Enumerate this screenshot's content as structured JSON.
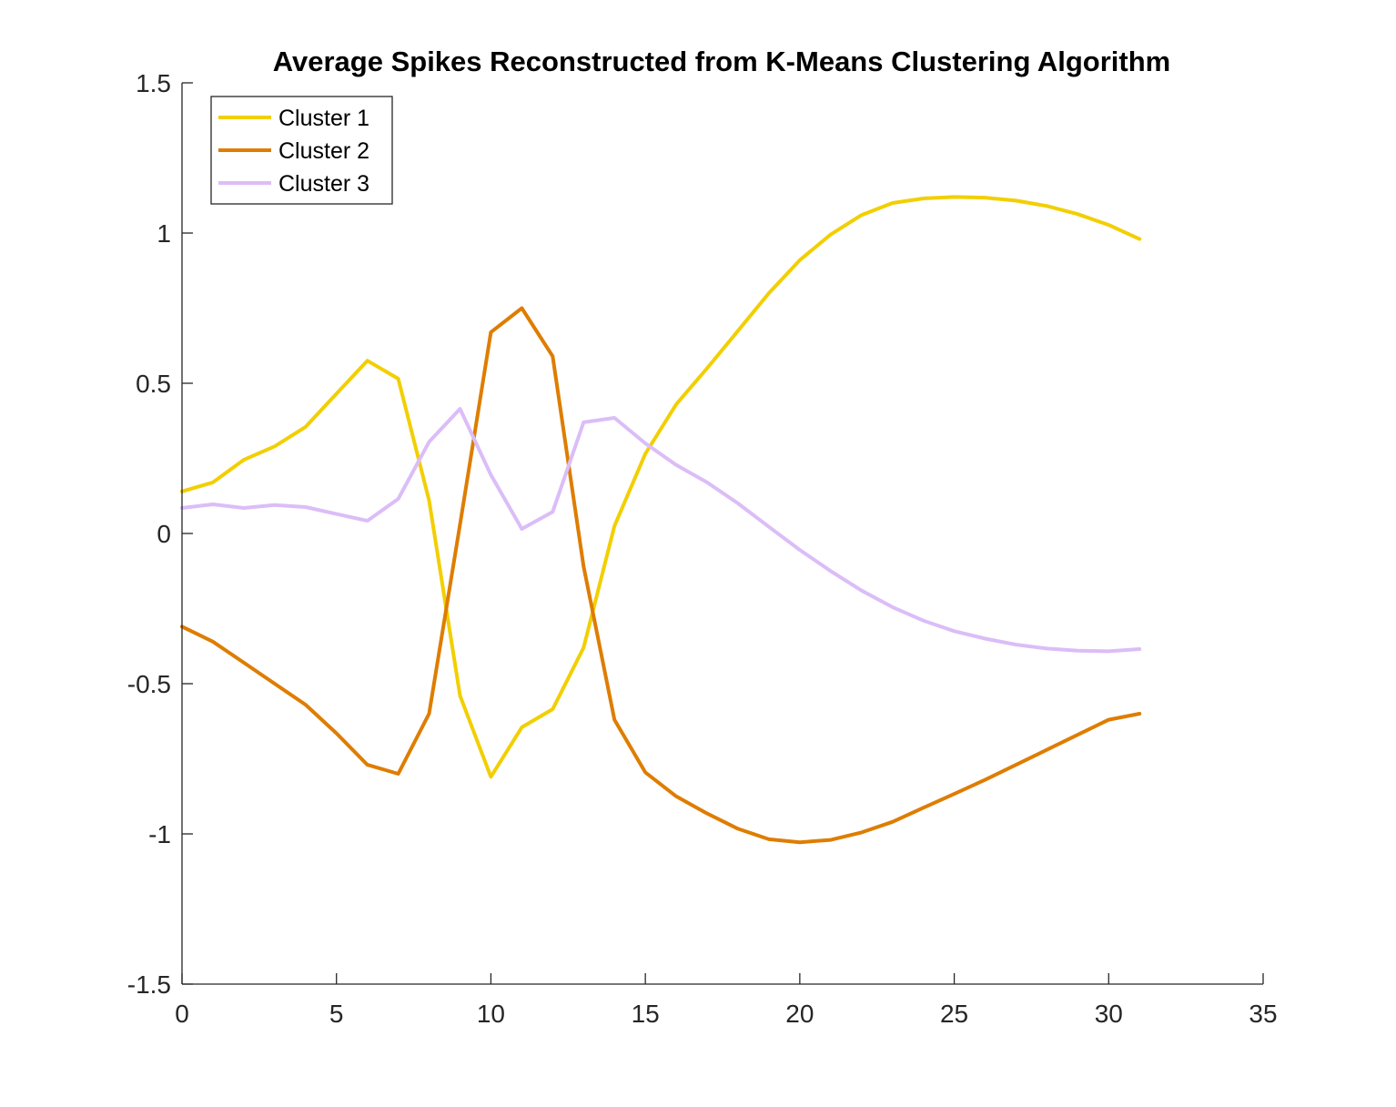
{
  "chart_data": {
    "type": "line",
    "title": "Average Spikes Reconstructed from K-Means Clustering Algorithm",
    "xlabel": "",
    "ylabel": "",
    "xlim": [
      0,
      35
    ],
    "ylim": [
      -1.5,
      1.5
    ],
    "xticks": [
      0,
      5,
      10,
      15,
      20,
      25,
      30,
      35
    ],
    "yticks": [
      -1.5,
      -1,
      -0.5,
      0,
      0.5,
      1,
      1.5
    ],
    "xtick_labels": [
      "0",
      "5",
      "10",
      "15",
      "20",
      "25",
      "30",
      "35"
    ],
    "ytick_labels": [
      "-1.5",
      "-1",
      "-0.5",
      "0",
      "0.5",
      "1",
      "1.5"
    ],
    "grid": false,
    "legend_position": "top-left",
    "x": [
      0,
      1,
      2,
      3,
      4,
      5,
      6,
      7,
      8,
      9,
      10,
      11,
      12,
      13,
      14,
      15,
      16,
      17,
      18,
      19,
      20,
      21,
      22,
      23,
      24,
      25,
      26,
      27,
      28,
      29,
      30,
      31
    ],
    "series": [
      {
        "name": "Cluster 1",
        "color": "#F2CF00",
        "values": [
          0.14,
          0.17,
          0.245,
          0.29,
          0.355,
          0.465,
          0.575,
          0.515,
          0.11,
          -0.54,
          -0.81,
          -0.645,
          -0.585,
          -0.38,
          0.025,
          0.265,
          0.43,
          0.55,
          0.675,
          0.8,
          0.91,
          0.995,
          1.06,
          1.1,
          1.115,
          1.12,
          1.118,
          1.108,
          1.09,
          1.063,
          1.027,
          0.98
        ]
      },
      {
        "name": "Cluster 2",
        "color": "#DE7D00",
        "values": [
          -0.31,
          -0.36,
          -0.43,
          -0.5,
          -0.57,
          -0.665,
          -0.77,
          -0.8,
          -0.6,
          0.03,
          0.67,
          0.75,
          0.59,
          -0.11,
          -0.62,
          -0.795,
          -0.875,
          -0.932,
          -0.983,
          -1.018,
          -1.028,
          -1.02,
          -0.995,
          -0.96,
          -0.913,
          -0.867,
          -0.82,
          -0.77,
          -0.72,
          -0.67,
          -0.62,
          -0.6
        ]
      },
      {
        "name": "Cluster 3",
        "color": "#DBBDF7",
        "values": [
          0.085,
          0.097,
          0.085,
          0.095,
          0.088,
          0.065,
          0.042,
          0.115,
          0.305,
          0.415,
          0.195,
          0.015,
          0.072,
          0.37,
          0.385,
          0.3,
          0.228,
          0.17,
          0.1,
          0.022,
          -0.055,
          -0.125,
          -0.19,
          -0.245,
          -0.29,
          -0.325,
          -0.35,
          -0.37,
          -0.383,
          -0.39,
          -0.392,
          -0.385
        ]
      }
    ]
  }
}
